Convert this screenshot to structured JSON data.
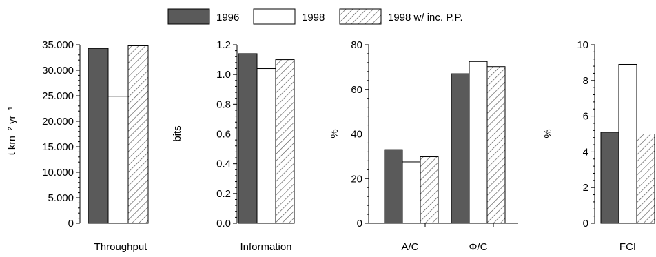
{
  "legend": {
    "placement": "top-center",
    "items": [
      {
        "label": "1996",
        "style": "solid-dark"
      },
      {
        "label": "1998",
        "style": "white"
      },
      {
        "label": "1998 w/ inc. P.P.",
        "style": "hatched"
      }
    ]
  },
  "colors": {
    "dark_fill": "#5a5a5a",
    "white_fill": "#ffffff",
    "hatch_stroke": "#555555",
    "outline": "#000000"
  },
  "chart_data": [
    {
      "type": "bar",
      "id": "throughput",
      "categories": [
        "Throughput"
      ],
      "series": [
        {
          "name": "1996",
          "values": [
            34300
          ]
        },
        {
          "name": "1998",
          "values": [
            24900
          ]
        },
        {
          "name": "1998 w/ inc. P.P.",
          "values": [
            34800
          ]
        }
      ],
      "xlabel": "Throughput",
      "ylabel": "t km⁻² yr⁻¹",
      "ylim": [
        0,
        35000
      ],
      "yticks": [
        0,
        5000,
        10000,
        15000,
        20000,
        25000,
        30000,
        35000
      ],
      "ytick_labels": [
        "0",
        "5.000",
        "10.000",
        "15.000",
        "20.000",
        "25.000",
        "30.000",
        "35.000"
      ],
      "grid": false
    },
    {
      "type": "bar",
      "id": "information",
      "categories": [
        "Information"
      ],
      "series": [
        {
          "name": "1996",
          "values": [
            1.14
          ]
        },
        {
          "name": "1998",
          "values": [
            1.04
          ]
        },
        {
          "name": "1998 w/ inc. P.P.",
          "values": [
            1.1
          ]
        }
      ],
      "xlabel": "Information",
      "ylabel": "bits",
      "ylim": [
        0,
        1.2
      ],
      "yticks": [
        0,
        0.2,
        0.4,
        0.6,
        0.8,
        1.0,
        1.2
      ],
      "ytick_labels": [
        "0.0",
        "0.2",
        "0.4",
        "0.6",
        "0.8",
        "1.0",
        "1.2"
      ],
      "grid": false
    },
    {
      "type": "bar",
      "id": "ratios",
      "categories": [
        "A/C",
        "Φ/C"
      ],
      "series": [
        {
          "name": "1996",
          "values": [
            33,
            67
          ]
        },
        {
          "name": "1998",
          "values": [
            27.5,
            72.5
          ]
        },
        {
          "name": "1998 w/ inc. P.P.",
          "values": [
            29.8,
            70.2
          ]
        }
      ],
      "xlabel": "",
      "ylabel": "%",
      "ylim": [
        0,
        80
      ],
      "yticks": [
        0,
        20,
        40,
        60,
        80
      ],
      "ytick_labels": [
        "0",
        "20",
        "40",
        "60",
        "80"
      ],
      "grid": false
    },
    {
      "type": "bar",
      "id": "fci",
      "categories": [
        "FCI"
      ],
      "series": [
        {
          "name": "1996",
          "values": [
            5.1
          ]
        },
        {
          "name": "1998",
          "values": [
            8.9
          ]
        },
        {
          "name": "1998 w/ inc. P.P.",
          "values": [
            5.0
          ]
        }
      ],
      "xlabel": "FCI",
      "ylabel": "%",
      "ylim": [
        0,
        10
      ],
      "yticks": [
        0,
        2,
        4,
        6,
        8,
        10
      ],
      "ytick_labels": [
        "0",
        "2",
        "4",
        "6",
        "8",
        "10"
      ],
      "grid": false
    }
  ]
}
